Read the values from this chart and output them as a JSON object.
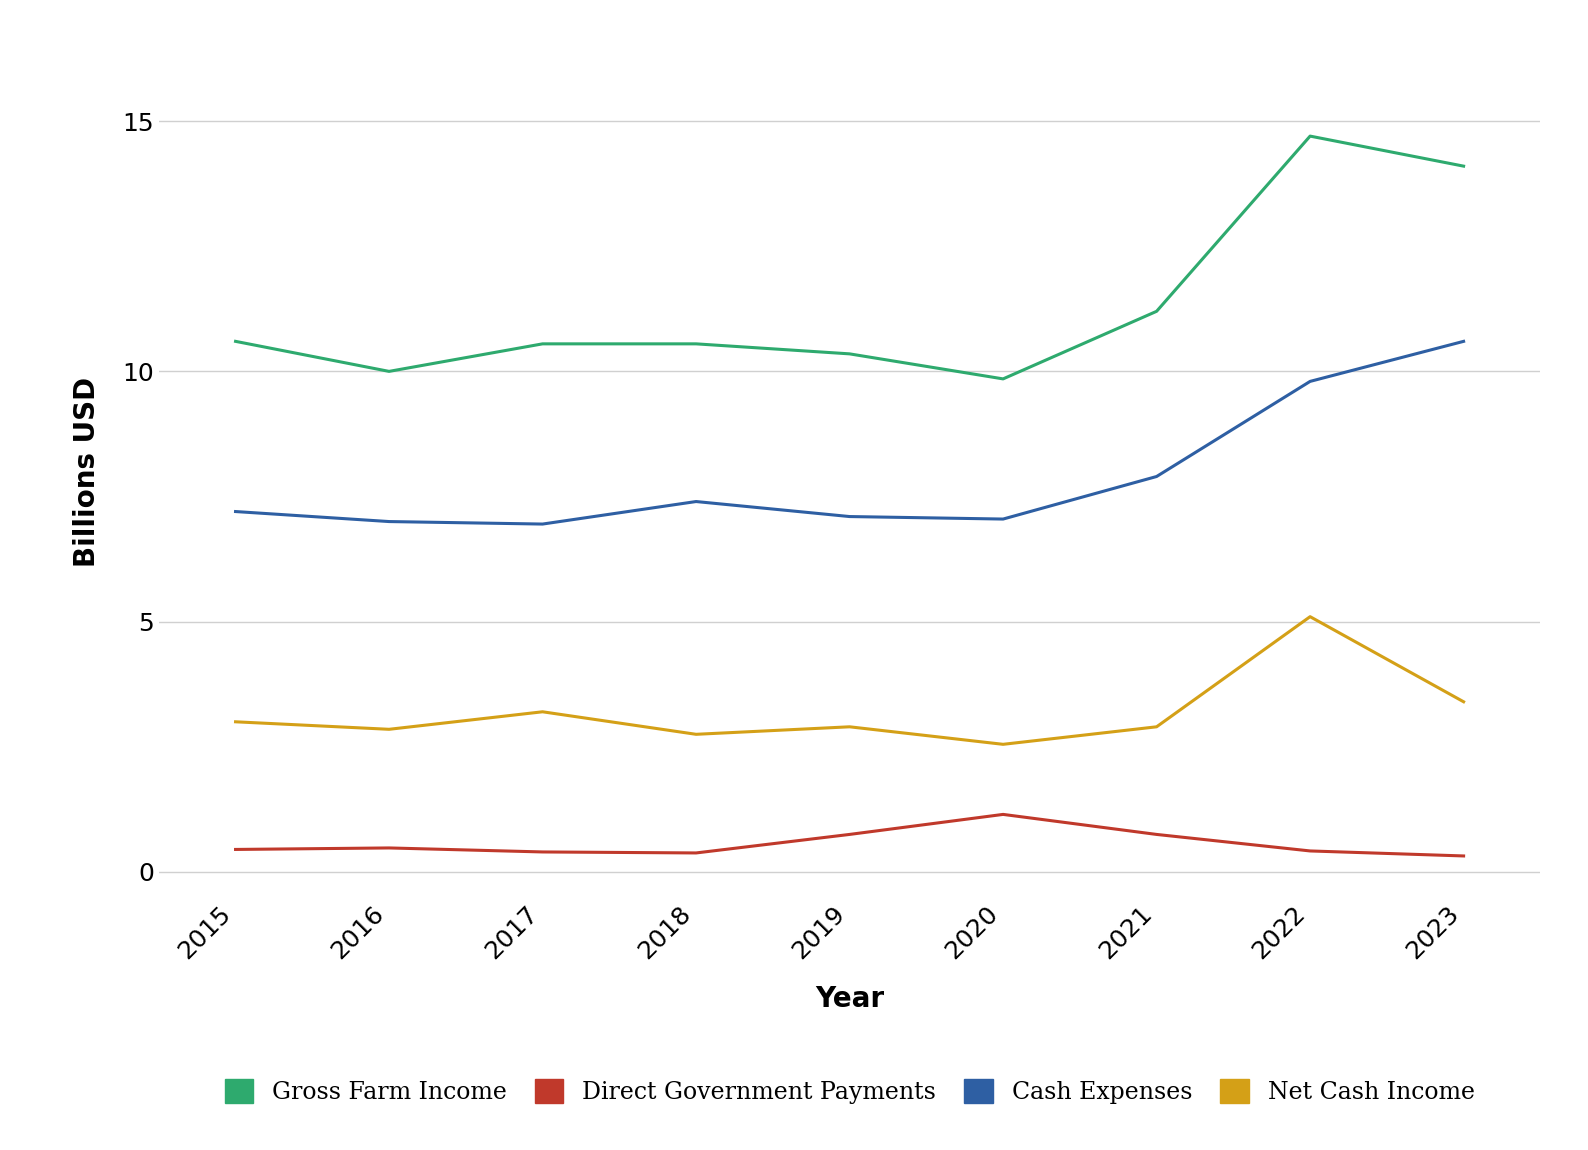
{
  "years": [
    2015,
    2016,
    2017,
    2018,
    2019,
    2020,
    2021,
    2022,
    2023
  ],
  "gross_farm_income": [
    10.6,
    10.0,
    10.55,
    10.55,
    10.35,
    9.85,
    11.2,
    14.7,
    14.1
  ],
  "direct_govt_payments": [
    0.45,
    0.48,
    0.4,
    0.38,
    0.75,
    1.15,
    0.75,
    0.42,
    0.32
  ],
  "cash_expenses": [
    7.2,
    7.0,
    6.95,
    7.4,
    7.1,
    7.05,
    7.9,
    9.8,
    10.6
  ],
  "net_cash_income": [
    3.0,
    2.85,
    3.2,
    2.75,
    2.9,
    2.55,
    2.9,
    5.1,
    3.4
  ],
  "colors": {
    "gross_farm_income": "#2eaa6e",
    "direct_govt_payments": "#c0392b",
    "cash_expenses": "#2e5fa3",
    "net_cash_income": "#d4a017"
  },
  "labels": {
    "gross_farm_income": "Gross Farm Income",
    "direct_govt_payments": "Direct Government Payments",
    "cash_expenses": "Cash Expenses",
    "net_cash_income": "Net Cash Income"
  },
  "xlabel": "Year",
  "ylabel": "Billions USD",
  "ylim": [
    -0.5,
    16.5
  ],
  "yticks": [
    0,
    5,
    10,
    15
  ],
  "line_width": 2.2,
  "background_color": "#ffffff",
  "grid_color": "#d0d0d0"
}
